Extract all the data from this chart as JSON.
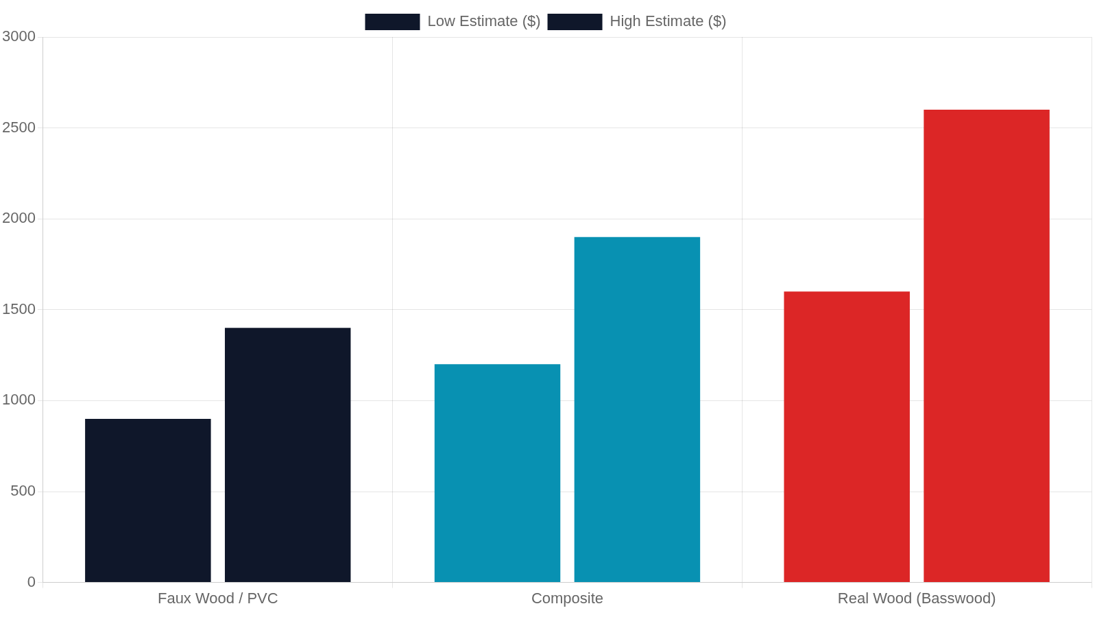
{
  "chart_data": {
    "type": "bar",
    "categories": [
      "Faux Wood / PVC",
      "Composite",
      "Real Wood (Basswood)"
    ],
    "series": [
      {
        "name": "Low Estimate ($)",
        "colors": [
          "#0f172a",
          "#0891b2",
          "#dc2626"
        ],
        "values": [
          900,
          1200,
          1600
        ]
      },
      {
        "name": "High Estimate ($)",
        "colors": [
          "#0f172a",
          "#0891b2",
          "#dc2626"
        ],
        "values": [
          1400,
          1900,
          2600
        ]
      }
    ],
    "ylim": [
      0,
      3000
    ],
    "yticks": [
      0,
      500,
      1000,
      1500,
      2000,
      2500,
      3000
    ],
    "grid": true,
    "legend": "top"
  }
}
